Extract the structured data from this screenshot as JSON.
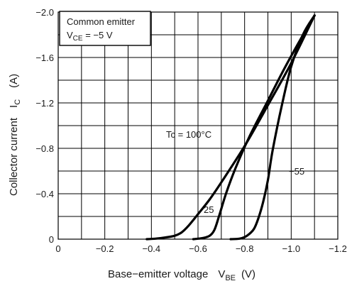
{
  "chart_data": {
    "type": "line",
    "title": "",
    "xlabel": "Base−emitter voltage",
    "xlabel_symbol": "V",
    "xlabel_subscript": "BE",
    "xlabel_unit": "(V)",
    "ylabel": "Collector current",
    "ylabel_symbol": "I",
    "ylabel_subscript": "C",
    "ylabel_unit": "(A)",
    "xlim": [
      0,
      -1.2
    ],
    "ylim": [
      0,
      -2.0
    ],
    "xticks": [
      0,
      -0.2,
      -0.4,
      -0.6,
      -0.8,
      -1.0,
      -1.2
    ],
    "xtick_labels": [
      "0",
      "−0.2",
      "−0.4",
      "−0.6",
      "−0.8",
      "−1.0",
      "−1.2"
    ],
    "yticks": [
      0,
      -0.4,
      -0.8,
      -1.2,
      -1.6,
      -2.0
    ],
    "ytick_labels": [
      "0",
      "−0.4",
      "−0.8",
      "−1.2",
      "−1.6",
      "−2.0"
    ],
    "grid": true,
    "legend_box": {
      "line1": "Common emitter",
      "line2_symbol": "V",
      "line2_subscript": "CE",
      "line2_value": " = −5 V",
      "placement": "top-left"
    },
    "series": [
      {
        "name": "Tc = 100°C",
        "x": [
          -0.38,
          -0.42,
          -0.46,
          -0.5,
          -0.53,
          -0.56,
          -0.6,
          -0.65,
          -0.7,
          -0.8,
          -0.9,
          -1.0,
          -1.1
        ],
        "y": [
          0,
          -0.005,
          -0.015,
          -0.03,
          -0.06,
          -0.12,
          -0.22,
          -0.35,
          -0.5,
          -0.82,
          -1.18,
          -1.55,
          -1.97
        ]
      },
      {
        "name": "25",
        "x": [
          -0.58,
          -0.62,
          -0.65,
          -0.67,
          -0.69,
          -0.72,
          -0.76,
          -0.82,
          -0.9,
          -0.97,
          -1.04,
          -1.1
        ],
        "y": [
          0,
          -0.01,
          -0.03,
          -0.08,
          -0.2,
          -0.4,
          -0.62,
          -0.9,
          -1.22,
          -1.5,
          -1.76,
          -1.97
        ]
      },
      {
        "name": "−55",
        "x": [
          -0.74,
          -0.78,
          -0.81,
          -0.84,
          -0.86,
          -0.88,
          -0.9,
          -0.92,
          -0.96,
          -1.0,
          -1.05,
          -1.1
        ],
        "y": [
          0,
          -0.005,
          -0.03,
          -0.09,
          -0.19,
          -0.33,
          -0.52,
          -0.78,
          -1.18,
          -1.52,
          -1.8,
          -1.97
        ]
      }
    ]
  }
}
